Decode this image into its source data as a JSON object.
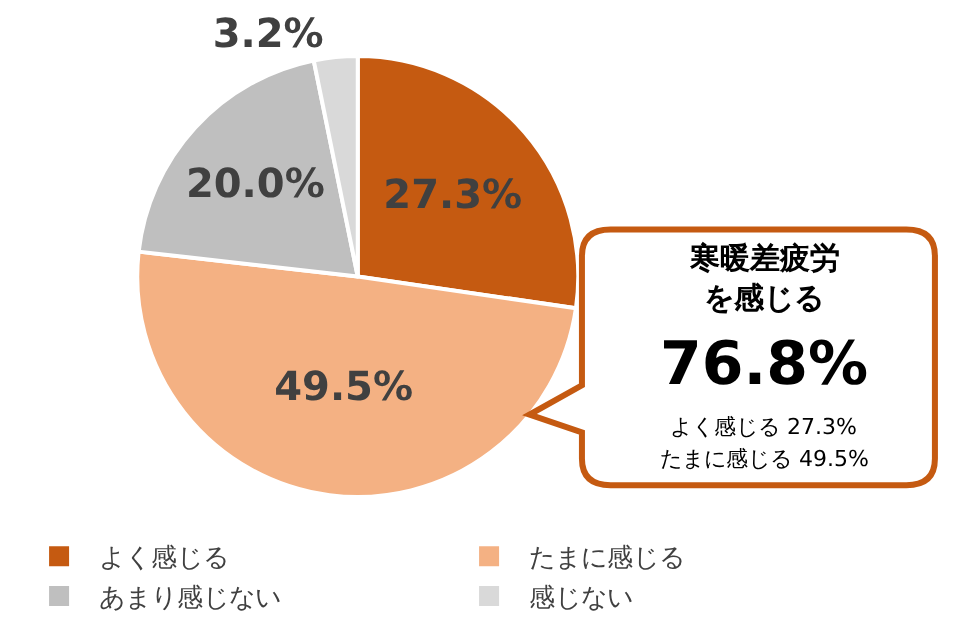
{
  "chart_data": {
    "type": "pie",
    "categories": [
      "よく感じる",
      "たまに感じる",
      "あまり感じない",
      "感じない"
    ],
    "values": [
      27.3,
      49.5,
      20.0,
      3.2
    ],
    "value_labels": [
      "27.3%",
      "49.5%",
      "20.0%",
      "3.2%"
    ],
    "colors": [
      "#c55a11",
      "#f4b183",
      "#bfbfbf",
      "#d9d9d9"
    ],
    "legend": "bottom",
    "annotations": [
      "寒暖差疲労",
      "を感じる",
      "76.8%",
      "よく感じる 27.3%",
      "たまに感じる 49.5%"
    ]
  }
}
